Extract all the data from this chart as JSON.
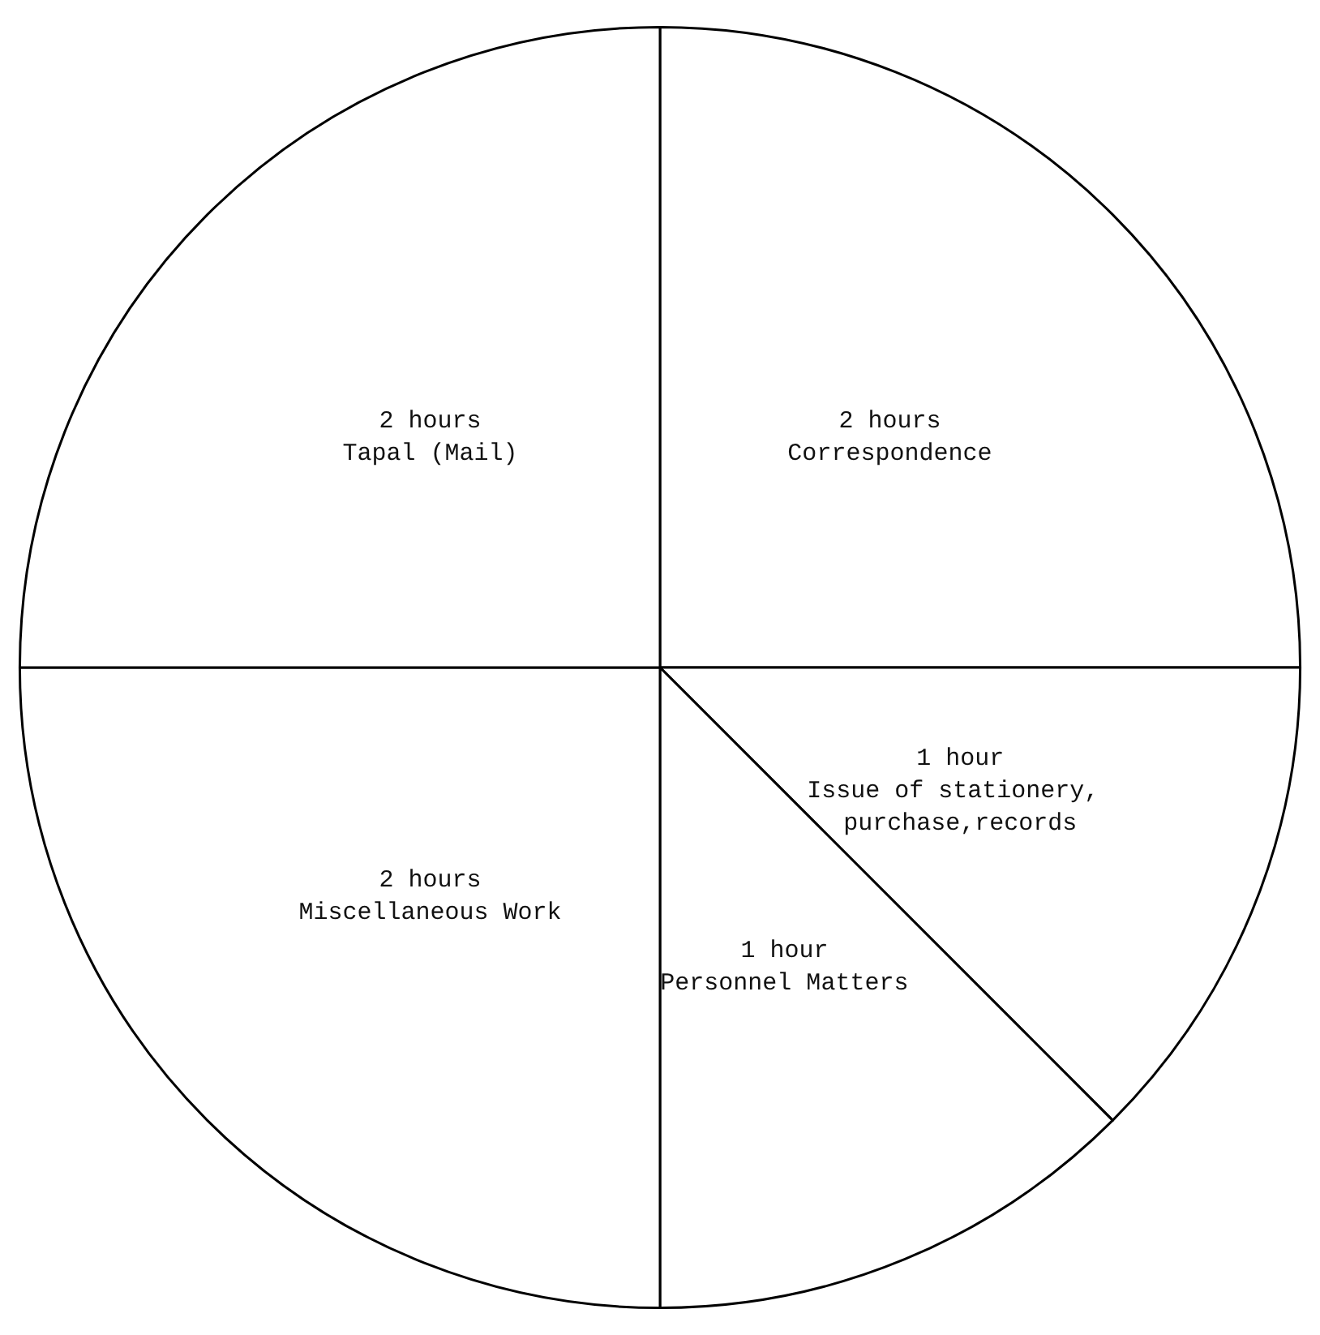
{
  "chart_data": {
    "type": "pie",
    "categories": [
      "Correspondence",
      "Issue of stationery, purchase,records",
      "Personnel Matters",
      "Miscellaneous Work",
      "Tapal (Mail)"
    ],
    "values": [
      2,
      1,
      1,
      2,
      2
    ],
    "value_labels": [
      "2 hours",
      "1 hour",
      "1 hour",
      "2 hours",
      "2 hours"
    ],
    "colors": [
      "#ffffff",
      "#ffffff",
      "#ffffff",
      "#ffffff",
      "#ffffff"
    ]
  }
}
